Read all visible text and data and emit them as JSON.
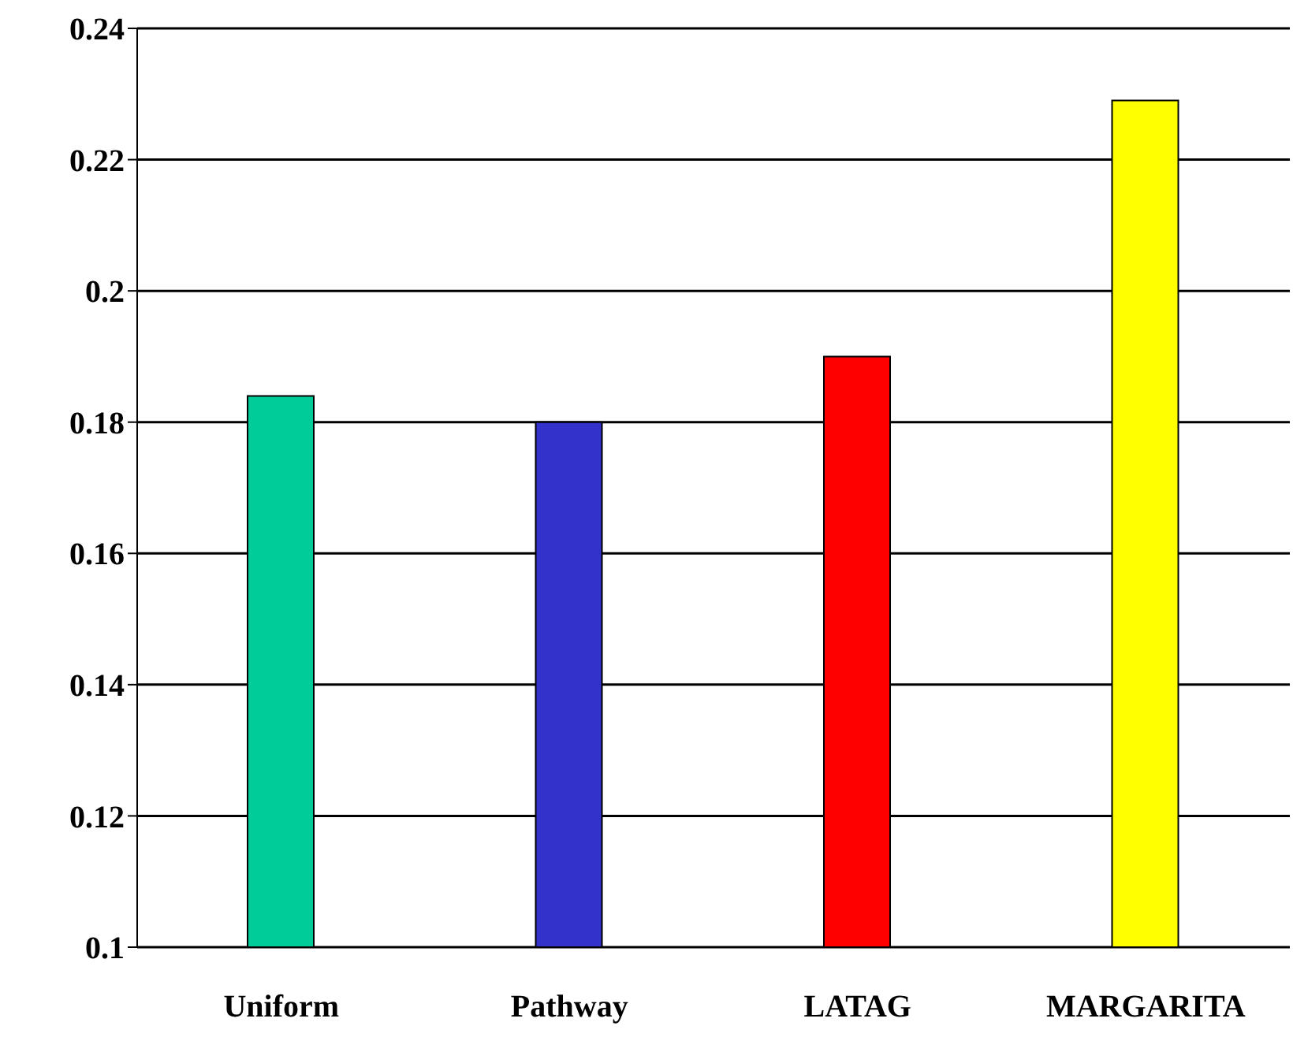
{
  "chart_data": {
    "type": "bar",
    "categories": [
      "Uniform",
      "Pathway",
      "LATAG",
      "MARGARITA"
    ],
    "values": [
      0.184,
      0.18,
      0.19,
      0.229
    ],
    "colors": [
      "#00cc99",
      "#3333cc",
      "#ff0000",
      "#ffff00"
    ],
    "ylim": [
      0.1,
      0.24
    ],
    "yticks": [
      0.1,
      0.12,
      0.14,
      0.16,
      0.18,
      0.2,
      0.22,
      0.24
    ],
    "grid": "y",
    "legend": false
  }
}
